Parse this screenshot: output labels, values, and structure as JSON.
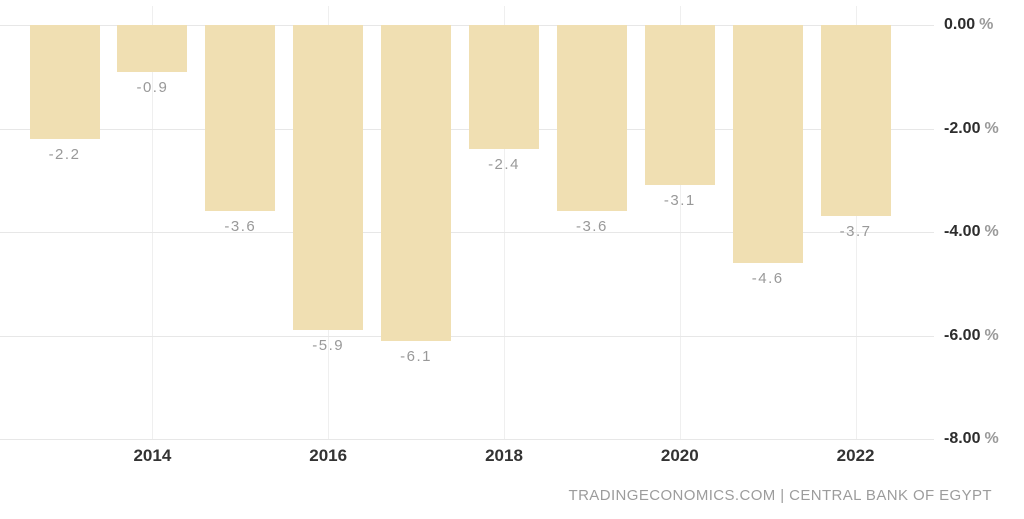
{
  "chart_data": {
    "type": "bar",
    "title": "",
    "xlabel": "",
    "ylabel": "",
    "categories": [
      "2013",
      "2014",
      "2015",
      "2016",
      "2017",
      "2018",
      "2019",
      "2020",
      "2021",
      "2022"
    ],
    "values": [
      -2.2,
      -0.9,
      -3.6,
      -5.9,
      -6.1,
      -2.4,
      -3.6,
      -3.1,
      -4.6,
      -3.7
    ],
    "value_labels": [
      "-2.2",
      "-0.9",
      "-3.6",
      "-5.9",
      "-6.1",
      "-2.4",
      "-3.6",
      "-3.1",
      "-4.6",
      "-3.7"
    ],
    "x_tick_labels": [
      "2014",
      "2016",
      "2018",
      "2020",
      "2022"
    ],
    "y_ticks": [
      {
        "value": 0,
        "label": "0.00",
        "suffix": "%"
      },
      {
        "value": -2,
        "label": "-2.00",
        "suffix": "%"
      },
      {
        "value": -4,
        "label": "-4.00",
        "suffix": "%"
      },
      {
        "value": -6,
        "label": "-6.00",
        "suffix": "%"
      },
      {
        "value": -8,
        "label": "-8.00",
        "suffix": "%"
      }
    ],
    "ylim": [
      -8,
      0
    ],
    "grid": true,
    "legend_position": "none",
    "bar_color": "#f0dfb2",
    "value_label_color": "#999999",
    "y_tick_color": "#2d2d2d",
    "y_suffix_color": "#9a9a9a",
    "x_tick_color": "#333333",
    "gridline_color": "#e7e7e7"
  },
  "footer": {
    "source_text": "TRADINGECONOMICS.COM | CENTRAL BANK OF EGYPT"
  }
}
